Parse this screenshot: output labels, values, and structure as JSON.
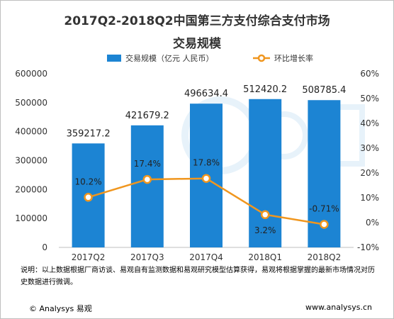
{
  "title": {
    "line1": "2017Q2-2018Q2中国第三方支付综合支付市场",
    "line2": "交易规模"
  },
  "legend": {
    "bar_label": "交易规模（亿元 人民币）",
    "line_label": "环比增长率"
  },
  "colors": {
    "bar": "#1c84d3",
    "bar_light": "#3fa0e6",
    "line": "#f0961e",
    "axis_text": "#333333"
  },
  "chart_data": {
    "type": "bar",
    "categories": [
      "2017Q2",
      "2017Q3",
      "2017Q4",
      "2018Q1",
      "2018Q2"
    ],
    "series": [
      {
        "name": "交易规模（亿元 人民币）",
        "type": "bar",
        "axis": "left",
        "values": [
          359217.2,
          421679.2,
          496634.4,
          512420.2,
          508785.4
        ],
        "labels": [
          "359217.2",
          "421679.2",
          "496634.4",
          "512420.2",
          "508785.4"
        ]
      },
      {
        "name": "环比增长率",
        "type": "line",
        "axis": "right",
        "values": [
          10.2,
          17.4,
          17.8,
          3.2,
          -0.71
        ],
        "labels": [
          "10.2%",
          "17.4%",
          "17.8%",
          "3.2%",
          "-0.71%"
        ]
      }
    ],
    "y_left": {
      "min": 0,
      "max": 600000,
      "ticks": [
        "0",
        "100000",
        "200000",
        "300000",
        "400000",
        "500000",
        "600000"
      ]
    },
    "y_right": {
      "min": -10,
      "max": 60,
      "ticks": [
        "-10%",
        "0%",
        "10%",
        "20%",
        "30%",
        "40%",
        "50%",
        "60%"
      ]
    },
    "grid": false,
    "legend_position": "top"
  },
  "note": "说明：以上数据根据厂商访谈、易观自有监测数据和易观研究模型估算获得，易观将根据掌握的最新市场情况对历史数据进行微调。",
  "footer": {
    "brand": "© Analysys 易观",
    "site": "www.analysys.cn"
  }
}
